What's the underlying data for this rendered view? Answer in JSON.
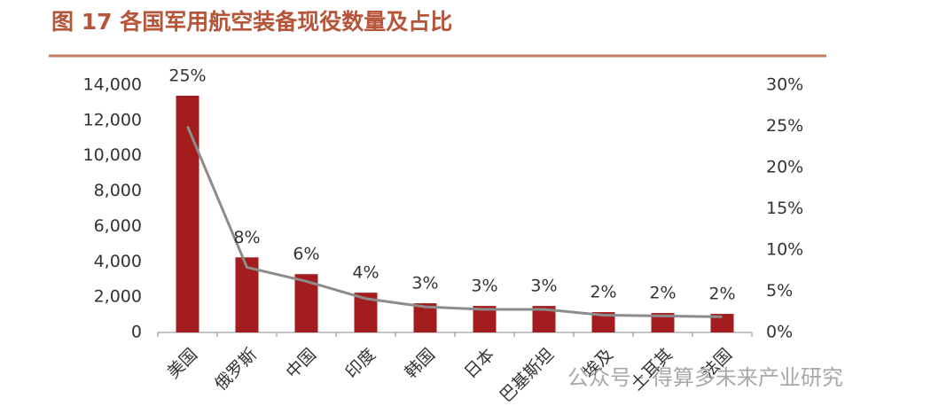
{
  "chart_data": {
    "type": "bar-line",
    "title": "图 17  各国军用航空装备现役数量及占比",
    "watermark": "公众号 · 得算多未来产业研究",
    "categories": [
      "美国",
      "俄罗斯",
      "中国",
      "印度",
      "韩国",
      "日本",
      "巴基斯坦",
      "埃及",
      "土耳其",
      "法国"
    ],
    "series": [
      {
        "type": "bar",
        "color": "#a31c1e",
        "values": [
          13400,
          4250,
          3300,
          2250,
          1650,
          1500,
          1500,
          1150,
          1100,
          1050
        ]
      },
      {
        "type": "line",
        "axis": "y2",
        "color": "#8c8c8c",
        "values": [
          25,
          7.9,
          6.2,
          4.1,
          3.1,
          2.8,
          2.8,
          2.1,
          2.0,
          1.9
        ],
        "value_labels": [
          "25%",
          "8%",
          "6%",
          "4%",
          "3%",
          "3%",
          "3%",
          "2%",
          "2%",
          "2%"
        ]
      }
    ],
    "ylim": [
      0,
      14000
    ],
    "yticks": [
      0,
      {
        "value": 2000,
        "label": "2,000"
      },
      {
        "value": 4000,
        "label": "4,000"
      },
      {
        "value": 6000,
        "label": "6,000"
      },
      {
        "value": 8000,
        "label": "8,000"
      },
      {
        "value": 10000,
        "label": "10,000"
      },
      {
        "value": 12000,
        "label": "12,000"
      },
      {
        "value": 14000,
        "label": "14,000"
      }
    ],
    "y2lim": [
      0,
      30
    ],
    "y2ticks": [
      {
        "value": 0,
        "label": "0%"
      },
      {
        "value": 5,
        "label": "5%"
      },
      {
        "value": 10,
        "label": "10%"
      },
      {
        "value": 15,
        "label": "15%"
      },
      {
        "value": 20,
        "label": "20%"
      },
      {
        "value": 25,
        "label": "25%"
      },
      {
        "value": 30,
        "label": "30%"
      }
    ]
  }
}
